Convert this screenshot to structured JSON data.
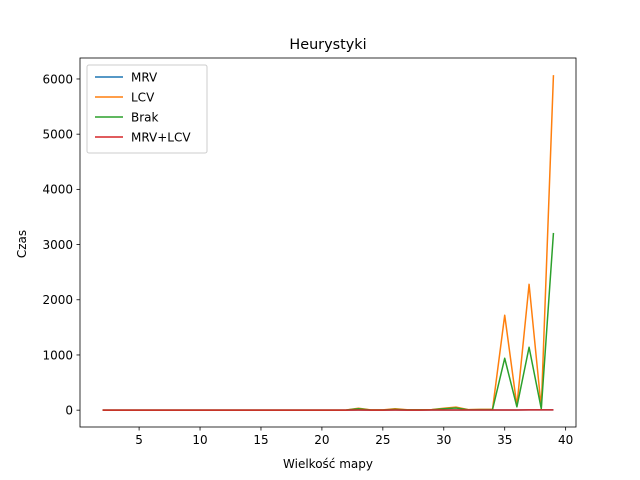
{
  "chart_data": {
    "type": "line",
    "title": "Heurystyki",
    "xlabel": "Wielkość mapy",
    "ylabel": "Czas",
    "xlim": [
      0.15,
      40.85
    ],
    "ylim": [
      -305,
      6380
    ],
    "xticks": [
      5,
      10,
      15,
      20,
      25,
      30,
      35,
      40
    ],
    "yticks": [
      0,
      1000,
      2000,
      3000,
      4000,
      5000,
      6000
    ],
    "grid": false,
    "legend_position": "top-left",
    "x": [
      2,
      3,
      4,
      5,
      6,
      7,
      8,
      9,
      10,
      11,
      12,
      13,
      14,
      15,
      16,
      17,
      18,
      19,
      20,
      21,
      22,
      23,
      24,
      25,
      26,
      27,
      28,
      29,
      30,
      31,
      32,
      33,
      34,
      35,
      36,
      37,
      38,
      39
    ],
    "series": [
      {
        "name": "MRV",
        "color": "#1f77b4",
        "values": [
          0,
          0,
          0,
          0,
          0,
          0,
          0,
          0,
          0,
          0,
          0,
          0,
          0,
          0,
          0,
          0,
          0,
          0,
          0,
          0,
          1,
          2,
          1,
          1,
          2,
          1,
          1,
          2,
          3,
          4,
          2,
          3,
          3,
          4,
          4,
          5,
          5,
          6
        ]
      },
      {
        "name": "LCV",
        "color": "#ff7f0e",
        "values": [
          0,
          0,
          0,
          0,
          0,
          0,
          0,
          0,
          0,
          0,
          0,
          0,
          0,
          0,
          0,
          0,
          0,
          0,
          0,
          0,
          3,
          35,
          5,
          5,
          25,
          8,
          8,
          10,
          35,
          55,
          10,
          15,
          15,
          1720,
          80,
          2280,
          40,
          6070
        ]
      },
      {
        "name": "Brak",
        "color": "#2ca02c",
        "values": [
          0,
          0,
          0,
          0,
          0,
          0,
          0,
          0,
          0,
          0,
          0,
          0,
          0,
          0,
          0,
          0,
          0,
          0,
          0,
          0,
          2,
          25,
          3,
          3,
          15,
          5,
          5,
          8,
          25,
          40,
          8,
          10,
          10,
          940,
          60,
          1140,
          25,
          3210
        ]
      },
      {
        "name": "MRV+LCV",
        "color": "#d62728",
        "values": [
          0,
          0,
          0,
          0,
          0,
          0,
          0,
          0,
          0,
          0,
          0,
          0,
          0,
          0,
          0,
          0,
          0,
          0,
          0,
          0,
          1,
          2,
          1,
          1,
          2,
          1,
          1,
          2,
          3,
          4,
          2,
          3,
          3,
          4,
          4,
          5,
          5,
          6
        ]
      }
    ]
  }
}
